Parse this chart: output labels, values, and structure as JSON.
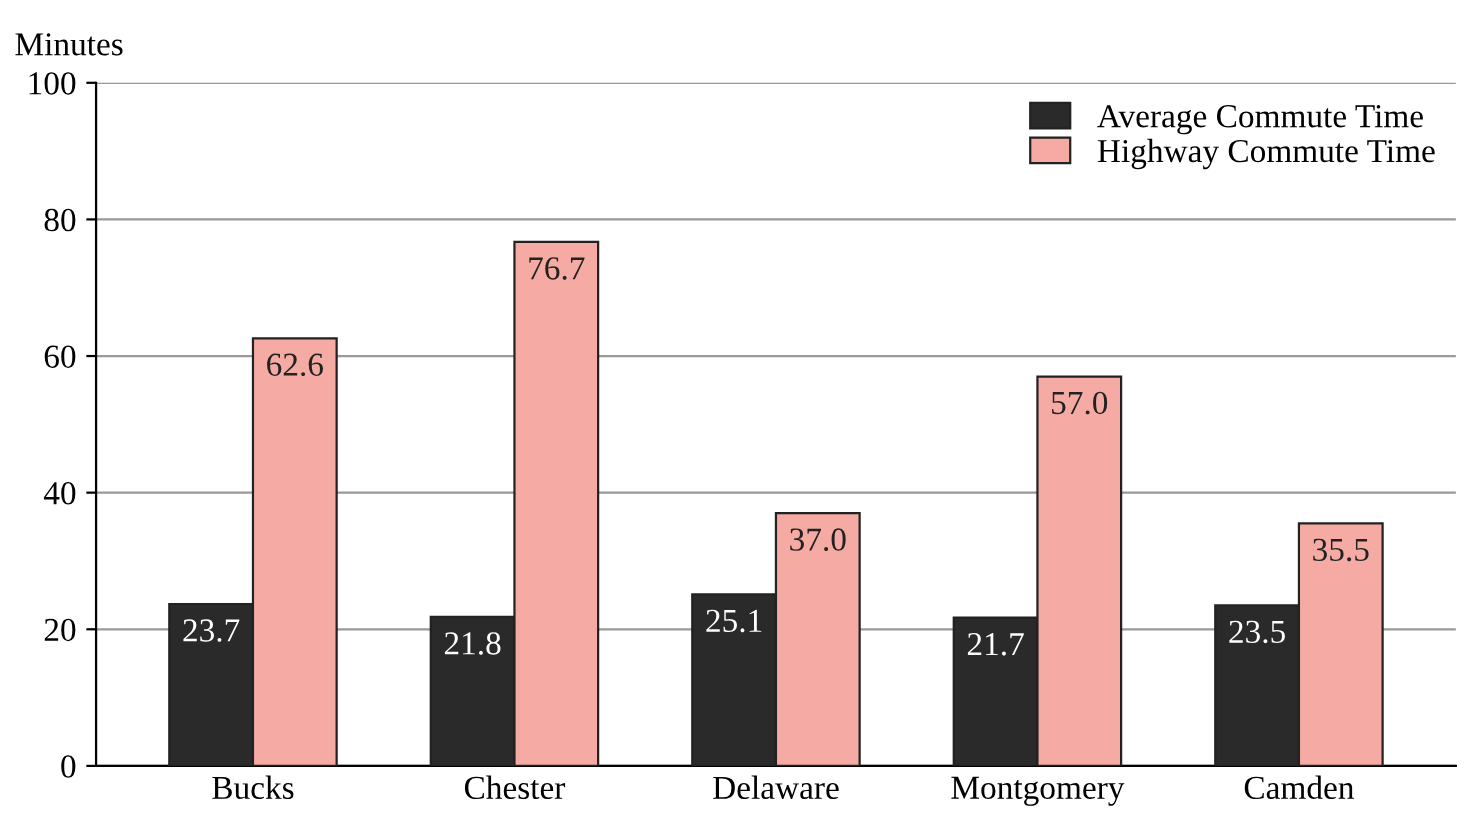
{
  "chart_data": {
    "type": "bar",
    "ylabel": "Minutes",
    "categories": [
      "Bucks",
      "Chester",
      "Delaware",
      "Montgomery",
      "Camden"
    ],
    "series": [
      {
        "name": "Average Commute Time",
        "color": "#2a2a2a",
        "values": [
          23.7,
          21.8,
          25.1,
          21.7,
          23.5
        ],
        "value_labels": [
          "23.7",
          "21.8",
          "25.1",
          "21.7",
          "23.5"
        ]
      },
      {
        "name": "Highway Commute Time",
        "color": "#f5aaa3",
        "values": [
          62.6,
          76.7,
          37.0,
          57.0,
          35.5
        ],
        "value_labels": [
          "62.6",
          "76.7",
          "37.0",
          "57.0",
          "35.5"
        ]
      }
    ],
    "ylim": [
      0,
      100
    ],
    "yticks": [
      0,
      20,
      40,
      60,
      80,
      100
    ],
    "grid": "y",
    "legend": "top right"
  }
}
